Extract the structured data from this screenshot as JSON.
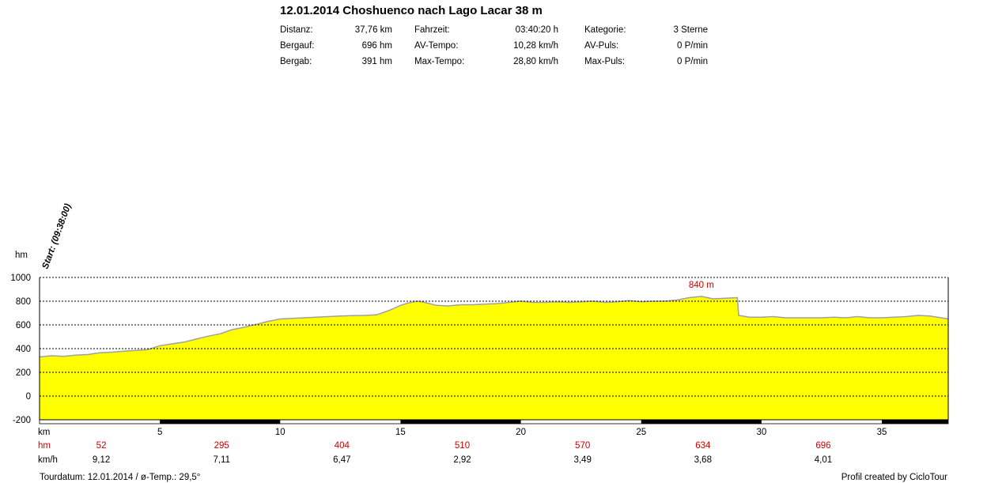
{
  "title": "12.01.2014 Choshuenco nach Lago Lacar 38 m",
  "stats": {
    "col1": [
      {
        "label": "Distanz:",
        "value": "37,76 km"
      },
      {
        "label": "Bergauf:",
        "value": "696 hm"
      },
      {
        "label": "Bergab:",
        "value": "391 hm"
      }
    ],
    "col2": [
      {
        "label": "Fahrzeit:",
        "value": "03:40:20 h"
      },
      {
        "label": "AV-Tempo:",
        "value": "10,28 km/h"
      },
      {
        "label": "Max-Tempo:",
        "value": "28,80 km/h"
      }
    ],
    "col3": [
      {
        "label": "Kategorie:",
        "value": "3 Sterne"
      },
      {
        "label": "AV-Puls:",
        "value": "0 P/min"
      },
      {
        "label": "Max-Puls:",
        "value": "0 P/min"
      }
    ]
  },
  "chart_data": {
    "type": "area",
    "ylabel": "hm",
    "xlabel": "km",
    "ylim": [
      -200,
      1000
    ],
    "xlim": [
      0,
      37.76
    ],
    "y_ticks": [
      1000,
      800,
      600,
      400,
      200,
      0,
      -200
    ],
    "x_ticks": [
      5,
      10,
      15,
      20,
      25,
      30,
      35
    ],
    "grid": "horizontal-dotted",
    "fill_color": "#ffff00",
    "line_color": "#a0a0a0",
    "start_annotation": "Start: (09:38:00)",
    "max_annotation": {
      "text": "840 m",
      "x": 27.5,
      "y": 840,
      "color": "#cc0000"
    },
    "series": [
      {
        "x": [
          0,
          0.5,
          1,
          1.5,
          2,
          2.5,
          3,
          3.5,
          4,
          4.5,
          5,
          5.5,
          6,
          6.5,
          7,
          7.5,
          8,
          8.5,
          9,
          9.5,
          10,
          10.5,
          11,
          11.5,
          12,
          12.5,
          13,
          13.5,
          14,
          14.5,
          15,
          15.3,
          15.7,
          16,
          16.5,
          17,
          17.5,
          18,
          18.5,
          19,
          19.5,
          20,
          20.5,
          21,
          21.5,
          22,
          22.5,
          23,
          23.5,
          24,
          24.5,
          25,
          25.5,
          26,
          26.5,
          27,
          27.5,
          28,
          28.5,
          29,
          29.05,
          29.5,
          30,
          30.5,
          31,
          31.5,
          32,
          32.5,
          33,
          33.5,
          34,
          34.5,
          35,
          35.5,
          36,
          36.5,
          37,
          37.76
        ],
        "values": [
          330,
          340,
          335,
          345,
          350,
          365,
          370,
          378,
          385,
          392,
          425,
          440,
          455,
          480,
          505,
          525,
          560,
          580,
          605,
          630,
          650,
          655,
          660,
          665,
          670,
          675,
          678,
          680,
          685,
          720,
          765,
          785,
          800,
          790,
          765,
          760,
          770,
          770,
          775,
          780,
          790,
          800,
          790,
          790,
          795,
          790,
          795,
          800,
          790,
          795,
          805,
          795,
          800,
          800,
          810,
          830,
          840,
          820,
          825,
          830,
          680,
          665,
          665,
          670,
          660,
          660,
          660,
          660,
          665,
          660,
          670,
          660,
          660,
          665,
          670,
          680,
          675,
          650
        ]
      }
    ],
    "segments": [
      {
        "km": "5",
        "hm": "52",
        "speed": "9,12"
      },
      {
        "km": "10",
        "hm": "295",
        "speed": "7,11"
      },
      {
        "km": "15",
        "hm": "404",
        "speed": "6,47"
      },
      {
        "km": "20",
        "hm": "510",
        "speed": "2,92"
      },
      {
        "km": "25",
        "hm": "570",
        "speed": "3,49"
      },
      {
        "km": "30",
        "hm": "634",
        "speed": "3,68"
      },
      {
        "km": "35",
        "hm": "696",
        "speed": "4,01"
      }
    ],
    "row_labels": {
      "km": "km",
      "hm": "hm",
      "speed": "km/h"
    }
  },
  "footer": {
    "left": "Tourdatum: 12.01.2014  /  ø-Temp.: 29,5°",
    "right": "Profil created by CicloTour"
  }
}
